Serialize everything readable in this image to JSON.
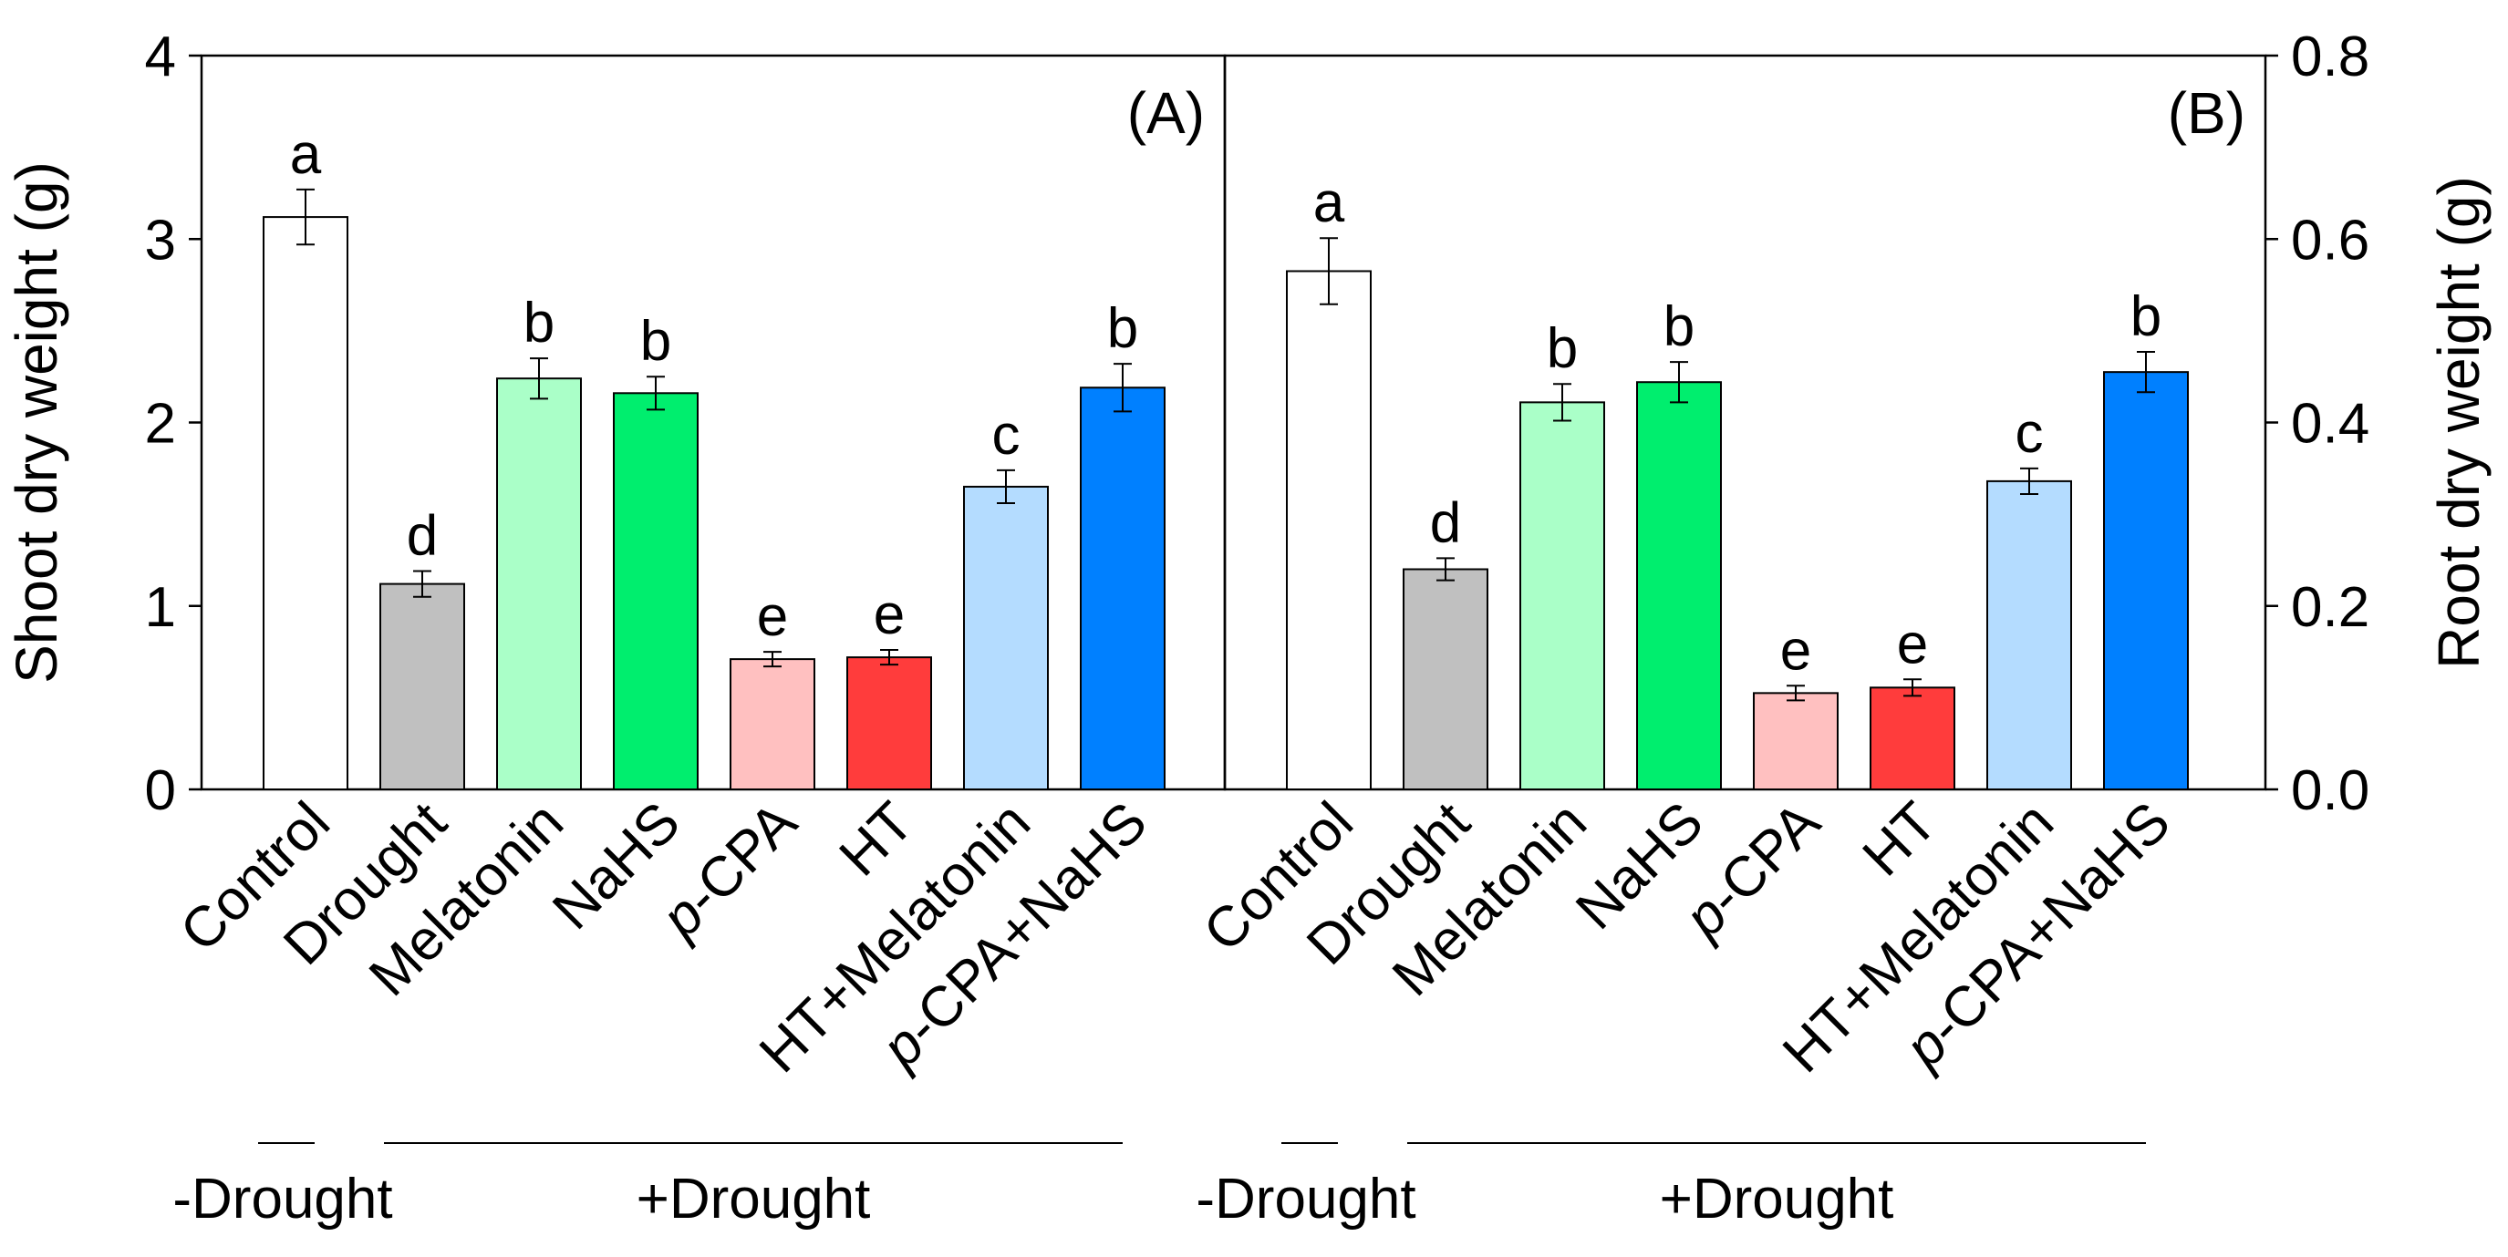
{
  "chart_data": [
    {
      "type": "bar",
      "panel_label": "(A)",
      "ylabel": "Shoot dry weight (g)",
      "ylim": [
        0,
        4
      ],
      "yticks": [
        "0",
        "1",
        "2",
        "3",
        "4"
      ],
      "ytick_values": [
        0,
        1,
        2,
        3,
        4
      ],
      "axis_side": "left",
      "categories": [
        "Control",
        "Drought",
        "Melatonin",
        "NaHS",
        "p-CPA",
        "HT",
        "HT+Melatonin",
        "p-CPA+NaHS"
      ],
      "values": [
        3.12,
        1.12,
        2.24,
        2.16,
        0.71,
        0.72,
        1.65,
        2.19
      ],
      "errors": [
        0.15,
        0.07,
        0.11,
        0.09,
        0.04,
        0.04,
        0.09,
        0.13
      ],
      "letters": [
        "a",
        "d",
        "b",
        "b",
        "e",
        "e",
        "c",
        "b"
      ],
      "groups": [
        {
          "label": "-Drought",
          "span": [
            0,
            0
          ]
        },
        {
          "label": "+Drought",
          "span": [
            1,
            7
          ]
        }
      ]
    },
    {
      "type": "bar",
      "panel_label": "(B)",
      "ylabel": "Root dry weight (g)",
      "ylim": [
        0,
        0.8
      ],
      "yticks": [
        "0.0",
        "0.2",
        "0.4",
        "0.6",
        "0.8"
      ],
      "ytick_values": [
        0,
        0.2,
        0.4,
        0.6,
        0.8
      ],
      "axis_side": "right",
      "categories": [
        "Control",
        "Drought",
        "Melatonin",
        "NaHS",
        "p-CPA",
        "HT",
        "HT+Melatonin",
        "p-CPA+NaHS"
      ],
      "values": [
        0.565,
        0.24,
        0.422,
        0.444,
        0.105,
        0.111,
        0.336,
        0.455
      ],
      "errors": [
        0.036,
        0.012,
        0.02,
        0.022,
        0.008,
        0.009,
        0.014,
        0.022
      ],
      "letters": [
        "a",
        "d",
        "b",
        "b",
        "e",
        "e",
        "c",
        "b"
      ],
      "groups": [
        {
          "label": "-Drought",
          "span": [
            0,
            0
          ]
        },
        {
          "label": "+Drought",
          "span": [
            1,
            7
          ]
        }
      ]
    }
  ],
  "colors": [
    "#ffffff",
    "#c0c0c0",
    "#aaffc8",
    "#00ee6e",
    "#ffc0c0",
    "#ff3c3c",
    "#b4dcff",
    "#0080ff"
  ]
}
